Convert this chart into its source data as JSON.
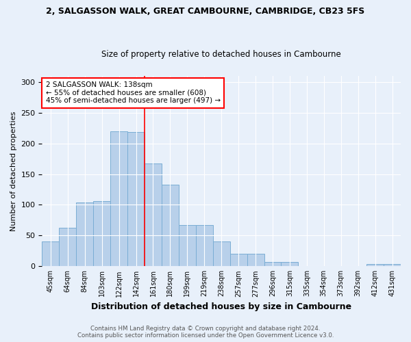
{
  "title1": "2, SALGASSON WALK, GREAT CAMBOURNE, CAMBRIDGE, CB23 5FS",
  "title2": "Size of property relative to detached houses in Cambourne",
  "xlabel": "Distribution of detached houses by size in Cambourne",
  "ylabel": "Number of detached properties",
  "categories": [
    "45sqm",
    "64sqm",
    "84sqm",
    "103sqm",
    "122sqm",
    "142sqm",
    "161sqm",
    "180sqm",
    "199sqm",
    "219sqm",
    "238sqm",
    "257sqm",
    "277sqm",
    "296sqm",
    "315sqm",
    "335sqm",
    "354sqm",
    "373sqm",
    "392sqm",
    "412sqm",
    "431sqm"
  ],
  "values": [
    40,
    63,
    104,
    106,
    220,
    218,
    167,
    133,
    67,
    67,
    40,
    20,
    20,
    7,
    7,
    0,
    0,
    0,
    0,
    4,
    4
  ],
  "bar_color": "#b8d0ea",
  "bar_edge_color": "#7aadd4",
  "reference_line_x": 5.5,
  "annotation_text": "2 SALGASSON WALK: 138sqm\n← 55% of detached houses are smaller (608)\n45% of semi-detached houses are larger (497) →",
  "annotation_box_color": "white",
  "annotation_box_edge_color": "red",
  "vline_color": "red",
  "footer": "Contains HM Land Registry data © Crown copyright and database right 2024.\nContains public sector information licensed under the Open Government Licence v3.0.",
  "ylim": [
    0,
    310
  ],
  "yticks": [
    0,
    50,
    100,
    150,
    200,
    250,
    300
  ],
  "background_color": "#e8f0fa",
  "grid_color": "white"
}
